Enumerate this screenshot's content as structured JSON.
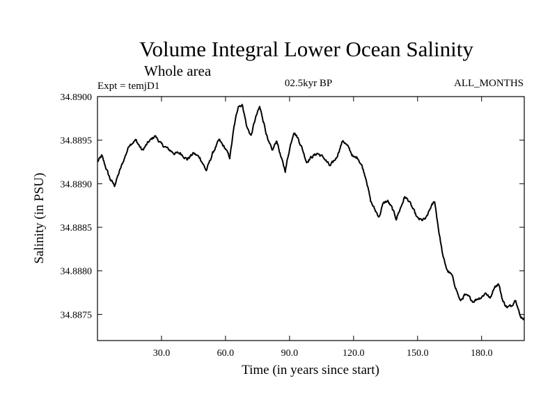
{
  "chart_data": {
    "type": "line",
    "title": "Volume Integral Lower Ocean Salinity",
    "subtitle": "Whole area",
    "experiment": "Expt = temjD1",
    "period": "02.5kyr BP",
    "months": "ALL_MONTHS",
    "xlabel": "Time (in years since start)",
    "ylabel": "Salinity (in PSU)",
    "xlim": [
      0,
      200
    ],
    "ylim": [
      34.8872,
      34.89
    ],
    "xticks": [
      {
        "value": 30,
        "label": "30.0"
      },
      {
        "value": 60,
        "label": "60.0"
      },
      {
        "value": 90,
        "label": "90.0"
      },
      {
        "value": 120,
        "label": "120.0"
      },
      {
        "value": 150,
        "label": "150.0"
      },
      {
        "value": 180,
        "label": "180.0"
      }
    ],
    "yticks": [
      {
        "value": 34.8875,
        "label": "34.8875"
      },
      {
        "value": 34.888,
        "label": "34.8880"
      },
      {
        "value": 34.8885,
        "label": "34.8885"
      },
      {
        "value": 34.889,
        "label": "34.8890"
      },
      {
        "value": 34.8895,
        "label": "34.8895"
      },
      {
        "value": 34.89,
        "label": "34.8900"
      }
    ],
    "series": [
      {
        "name": "salinity",
        "x": [
          0,
          2,
          4,
          6,
          8,
          10,
          12,
          15,
          18,
          21,
          24,
          27,
          30,
          33,
          36,
          39,
          42,
          45,
          48,
          51,
          54,
          57,
          60,
          62,
          64,
          66,
          68,
          70,
          72,
          74,
          76,
          78,
          80,
          82,
          84,
          86,
          88,
          90,
          92,
          94,
          96,
          98,
          100,
          103,
          106,
          109,
          112,
          115,
          118,
          120,
          122,
          124,
          126,
          128,
          130,
          132,
          134,
          136,
          138,
          140,
          142,
          144,
          146,
          148,
          150,
          152,
          154,
          156,
          158,
          160,
          162,
          164,
          166,
          168,
          170,
          172,
          174,
          176,
          178,
          180,
          182,
          184,
          186,
          188,
          190,
          192,
          194,
          196,
          198,
          200
        ],
        "y": [
          34.88925,
          34.88932,
          34.88918,
          34.88905,
          34.88898,
          34.88912,
          34.88925,
          34.88945,
          34.8895,
          34.88938,
          34.88948,
          34.88955,
          34.88945,
          34.8894,
          34.88935,
          34.88935,
          34.88928,
          34.88935,
          34.8893,
          34.88915,
          34.88935,
          34.8895,
          34.8894,
          34.8893,
          34.88965,
          34.8899,
          34.8899,
          34.88965,
          34.88955,
          34.88975,
          34.88988,
          34.8897,
          34.88948,
          34.88938,
          34.8895,
          34.8893,
          34.88915,
          34.8894,
          34.8896,
          34.88952,
          34.8894,
          34.88925,
          34.8893,
          34.88935,
          34.8893,
          34.8892,
          34.8893,
          34.8895,
          34.8894,
          34.8893,
          34.8893,
          34.8892,
          34.88905,
          34.8888,
          34.8887,
          34.88862,
          34.88878,
          34.8888,
          34.88872,
          34.8886,
          34.88872,
          34.88885,
          34.8888,
          34.8887,
          34.8886,
          34.88858,
          34.8886,
          34.88872,
          34.8888,
          34.88845,
          34.88815,
          34.888,
          34.88795,
          34.8878,
          34.88765,
          34.88772,
          34.8877,
          34.88765,
          34.88768,
          34.8877,
          34.88775,
          34.88768,
          34.88782,
          34.88785,
          34.88765,
          34.88758,
          34.8876,
          34.88768,
          34.88748,
          34.88745
        ]
      }
    ]
  }
}
